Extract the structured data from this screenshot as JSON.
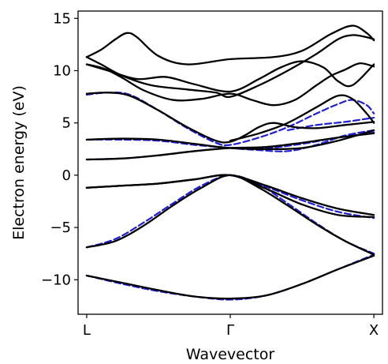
{
  "chart_data": {
    "type": "line",
    "xlabel": "Wavevector",
    "ylabel": "Electron energy (eV)",
    "ylim": [
      -13.3,
      15.7
    ],
    "xlim": [
      -0.06,
      2.06
    ],
    "x_ticks": [
      {
        "value": 0,
        "label": "L"
      },
      {
        "value": 1,
        "label": "Γ"
      },
      {
        "value": 2,
        "label": "X"
      }
    ],
    "y_ticks": [
      {
        "value": -10,
        "label": "−10"
      },
      {
        "value": -5,
        "label": "−5"
      },
      {
        "value": 0,
        "label": "0"
      },
      {
        "value": 5,
        "label": "5"
      },
      {
        "value": 10,
        "label": "10"
      },
      {
        "value": 15,
        "label": "15"
      }
    ],
    "grid": false,
    "colors": {
      "reference": "#1f1fd8",
      "model": "#000000"
    },
    "series": [
      {
        "style": "dashed-blue",
        "x": [
          0,
          0.25,
          0.5,
          0.75,
          1.0,
          1.25,
          1.5,
          1.75,
          2.0
        ],
        "y": [
          -9.6,
          -10.4,
          -11.1,
          -11.6,
          -11.9,
          -11.5,
          -10.4,
          -9.0,
          -7.6
        ]
      },
      {
        "style": "dashed-blue",
        "x": [
          0,
          0.2,
          0.4,
          0.6,
          0.8,
          1.0,
          1.2,
          1.4,
          1.6,
          1.8,
          2.0
        ],
        "y": [
          -6.9,
          -6.1,
          -4.5,
          -2.7,
          -1.0,
          0.0,
          -0.9,
          -2.7,
          -4.6,
          -6.3,
          -7.5
        ]
      },
      {
        "style": "dashed-blue",
        "x": [
          0,
          0.25,
          0.5,
          0.75,
          1.0,
          1.25,
          1.5,
          1.75,
          2.0
        ],
        "y": [
          -1.2,
          -1.0,
          -0.8,
          -0.4,
          0.0,
          -1.1,
          -2.4,
          -3.5,
          -4.1
        ]
      },
      {
        "style": "dashed-blue",
        "x": [
          0,
          0.25,
          0.5,
          0.75,
          1.0,
          1.25,
          1.5,
          1.75,
          2.0
        ],
        "y": [
          1.5,
          1.6,
          1.9,
          2.3,
          2.6,
          2.6,
          3.0,
          3.6,
          4.1
        ]
      },
      {
        "style": "dashed-blue",
        "x": [
          0,
          0.25,
          0.5,
          0.75,
          1.0,
          1.2,
          1.4,
          1.6,
          1.8,
          2.0
        ],
        "y": [
          3.4,
          3.4,
          3.3,
          2.9,
          2.6,
          2.4,
          2.3,
          2.9,
          3.8,
          4.3
        ]
      },
      {
        "style": "dashed-blue",
        "x": [
          0,
          0.15,
          0.3,
          0.5,
          0.7,
          0.9,
          1.0,
          1.2,
          1.4,
          1.6,
          1.75,
          1.85,
          1.95,
          2.0
        ],
        "y": [
          7.7,
          7.9,
          7.7,
          6.2,
          4.5,
          3.1,
          2.9,
          3.6,
          4.6,
          5.9,
          6.8,
          7.2,
          6.7,
          5.9
        ]
      },
      {
        "style": "dashed-blue",
        "x": [
          1.4,
          1.6,
          1.8,
          2.0
        ],
        "y": [
          4.3,
          4.8,
          5.1,
          5.5
        ]
      },
      {
        "style": "solid-black",
        "x": [
          0,
          0.25,
          0.5,
          0.75,
          1.0,
          1.25,
          1.5,
          1.75,
          2.0
        ],
        "y": [
          -9.6,
          -10.3,
          -11.0,
          -11.6,
          -11.8,
          -11.5,
          -10.4,
          -9.0,
          -7.7
        ]
      },
      {
        "style": "solid-black",
        "x": [
          0,
          0.2,
          0.4,
          0.6,
          0.8,
          1.0,
          1.2,
          1.4,
          1.6,
          1.8,
          2.0
        ],
        "y": [
          -6.9,
          -6.3,
          -4.8,
          -2.9,
          -1.2,
          0.0,
          -1.2,
          -2.9,
          -4.7,
          -6.3,
          -7.6
        ]
      },
      {
        "style": "solid-black",
        "x": [
          0,
          0.25,
          0.5,
          0.75,
          1.0,
          1.25,
          1.5,
          1.75,
          2.0
        ],
        "y": [
          -1.2,
          -1.0,
          -0.8,
          -0.4,
          0.0,
          -1.0,
          -2.2,
          -3.2,
          -3.8
        ]
      },
      {
        "style": "solid-black",
        "x": [
          0,
          0.25,
          0.5,
          0.75,
          1.0,
          1.25,
          1.5,
          1.75,
          2.0
        ],
        "y": [
          -1.2,
          -1.0,
          -0.8,
          -0.4,
          0.0,
          -1.3,
          -2.8,
          -3.8,
          -4.0
        ]
      },
      {
        "style": "solid-black",
        "x": [
          0,
          0.25,
          0.5,
          0.75,
          1.0,
          1.25,
          1.5,
          1.75,
          2.0
        ],
        "y": [
          1.5,
          1.6,
          1.9,
          2.3,
          2.6,
          2.7,
          3.1,
          3.6,
          4.0
        ]
      },
      {
        "style": "solid-black",
        "x": [
          0,
          0.25,
          0.5,
          0.75,
          1.0,
          1.25,
          1.5,
          1.75,
          2.0
        ],
        "y": [
          3.4,
          3.5,
          3.4,
          3.0,
          2.6,
          2.5,
          2.6,
          3.3,
          4.3
        ]
      },
      {
        "style": "solid-black",
        "x": [
          0,
          0.15,
          0.3,
          0.5,
          0.7,
          0.9,
          1.0,
          1.1,
          1.2,
          1.3,
          1.45,
          1.6,
          1.8,
          2.0
        ],
        "y": [
          7.8,
          7.9,
          7.6,
          6.2,
          4.6,
          3.3,
          3.2,
          3.8,
          4.6,
          5.0,
          4.6,
          4.5,
          4.8,
          5.1
        ]
      },
      {
        "style": "solid-black",
        "x": [
          1.0,
          1.2,
          1.4,
          1.6,
          1.75,
          1.85,
          1.95,
          2.0
        ],
        "y": [
          3.3,
          4.0,
          5.0,
          6.5,
          7.6,
          7.3,
          5.9,
          5.0
        ]
      },
      {
        "style": "solid-black",
        "x": [
          0,
          0.12,
          0.25,
          0.4,
          0.6,
          0.8,
          1.0,
          1.15,
          1.3,
          1.45,
          1.6,
          1.7,
          1.8,
          1.9,
          2.0
        ],
        "y": [
          10.6,
          10.2,
          9.3,
          8.1,
          7.2,
          7.3,
          7.8,
          7.2,
          6.7,
          7.2,
          8.6,
          9.5,
          10.1,
          10.7,
          10.4
        ]
      },
      {
        "style": "solid-black",
        "x": [
          0,
          0.15,
          0.35,
          0.55,
          0.75,
          1.0,
          1.2,
          1.35,
          1.5,
          1.65,
          1.75,
          1.85,
          2.0
        ],
        "y": [
          10.6,
          10.0,
          9.2,
          9.4,
          8.7,
          8.0,
          9.2,
          10.3,
          10.9,
          10.3,
          9.0,
          8.6,
          10.6
        ]
      },
      {
        "style": "solid-black",
        "x": [
          0,
          0.1,
          0.2,
          0.28,
          0.35,
          0.5,
          0.7,
          1.0,
          1.3,
          1.5,
          1.7,
          1.85,
          1.95,
          2.0
        ],
        "y": [
          11.3,
          12.0,
          13.0,
          13.6,
          13.2,
          11.4,
          10.6,
          11.1,
          11.3,
          11.9,
          13.5,
          14.3,
          13.6,
          12.9
        ]
      },
      {
        "style": "solid-black",
        "x": [
          0,
          0.1,
          0.25,
          0.45,
          0.7,
          0.9,
          1.0,
          1.2,
          1.4,
          1.6,
          1.75,
          1.85,
          1.95,
          2.0
        ],
        "y": [
          11.3,
          10.6,
          9.5,
          8.6,
          8.2,
          7.9,
          7.5,
          8.6,
          10.0,
          11.6,
          13.0,
          13.4,
          13.2,
          13.0
        ]
      }
    ]
  }
}
